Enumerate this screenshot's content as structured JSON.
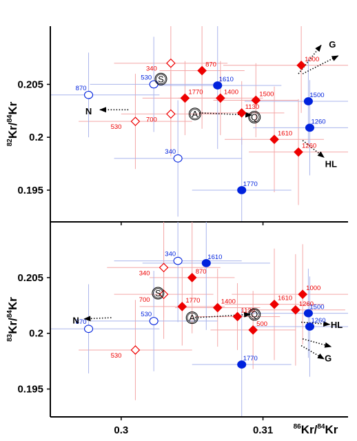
{
  "colors": {
    "red": "#ee0000",
    "blue": "#0022dd",
    "red_bar": "#f4a6a6",
    "blue_bar": "#a9b4ec",
    "axis": "#000000"
  },
  "chart_data": [
    {
      "type": "scatter",
      "panel": "top",
      "ylabel": {
        "sup1": "82",
        "base1": "Kr/",
        "sup2": "84",
        "base2": "Kr"
      },
      "xlim": [
        0.295,
        0.316
      ],
      "ylim": [
        0.192,
        0.2105
      ],
      "yticks": [
        "0.205",
        "0.2",
        "0.195"
      ],
      "ytick_values": [
        0.205,
        0.2,
        0.195
      ],
      "grid": false,
      "series": [
        {
          "marker": "filled-diamond",
          "color": "red",
          "points": [
            {
              "label": "870",
              "x": 0.3057,
              "y": 0.2063,
              "xerr": 0.003,
              "yerr": 0.0055
            },
            {
              "label": "1000",
              "x": 0.3127,
              "y": 0.2068,
              "xerr": 0.0055,
              "yerr": 0.0045
            },
            {
              "label": "1770",
              "x": 0.3045,
              "y": 0.2037,
              "xerr": 0.003,
              "yerr": 0.0035
            },
            {
              "label": "1400",
              "x": 0.307,
              "y": 0.2037,
              "xerr": 0.003,
              "yerr": 0.0035
            },
            {
              "label": "1500",
              "x": 0.3095,
              "y": 0.2035,
              "xerr": 0.003,
              "yerr": 0.0035
            },
            {
              "label": "1130",
              "x": 0.3085,
              "y": 0.2023,
              "xerr": 0.003,
              "yerr": 0.003
            },
            {
              "label": "1610",
              "x": 0.3108,
              "y": 0.1998,
              "xerr": 0.0035,
              "yerr": 0.005
            },
            {
              "label": "1260",
              "x": 0.3125,
              "y": 0.1986,
              "xerr": 0.0035,
              "yerr": 0.005
            }
          ]
        },
        {
          "marker": "open-diamond",
          "color": "red",
          "points": [
            {
              "label": "340",
              "x": 0.3035,
              "y": 0.207,
              "xerr": 0.004,
              "yerr": 0.0045
            },
            {
              "label": "700",
              "x": 0.3035,
              "y": 0.2022,
              "xerr": 0.0035,
              "yerr": 0.004
            },
            {
              "label": "530",
              "x": 0.301,
              "y": 0.2015,
              "xerr": 0.004,
              "yerr": 0.0045
            }
          ]
        },
        {
          "marker": "filled-circle",
          "color": "blue",
          "points": [
            {
              "label": "1610",
              "x": 0.3068,
              "y": 0.2049,
              "xerr": 0.0045,
              "yerr": 0.006
            },
            {
              "label": "1500",
              "x": 0.3132,
              "y": 0.2034,
              "xerr": 0.0045,
              "yerr": 0.004
            },
            {
              "label": "1260",
              "x": 0.3133,
              "y": 0.2009,
              "xerr": 0.004,
              "yerr": 0.0045
            },
            {
              "label": "1770",
              "x": 0.3085,
              "y": 0.195,
              "xerr": 0.0035,
              "yerr": 0.005
            }
          ]
        },
        {
          "marker": "open-circle",
          "color": "blue",
          "points": [
            {
              "label": "870",
              "x": 0.2977,
              "y": 0.204,
              "xerr": 0.005,
              "yerr": 0.004
            },
            {
              "label": "530",
              "x": 0.3023,
              "y": 0.205,
              "xerr": 0.0045,
              "yerr": 0.0045
            },
            {
              "label": "340",
              "x": 0.304,
              "y": 0.198,
              "xerr": 0.0045,
              "yerr": 0.0055
            }
          ]
        }
      ],
      "annotations": [
        {
          "kind": "circle",
          "text": "S",
          "x": 0.3028,
          "y": 0.2055
        },
        {
          "kind": "circle",
          "text": "A",
          "x": 0.3052,
          "y": 0.2022
        },
        {
          "kind": "circle",
          "text": "Q",
          "x": 0.3094,
          "y": 0.2019
        },
        {
          "kind": "text",
          "text": "N",
          "x": 0.2977,
          "y": 0.2025
        },
        {
          "kind": "text",
          "text": "G",
          "x": 0.3149,
          "y": 0.2088
        },
        {
          "kind": "text",
          "text": "HL",
          "x": 0.3148,
          "y": 0.1975
        }
      ],
      "arrows": [
        {
          "from": [
            0.3055,
            0.2023
          ],
          "to": [
            0.3092,
            0.2021
          ]
        },
        {
          "from": [
            0.3005,
            0.2026
          ],
          "to": [
            0.2985,
            0.2026
          ]
        },
        {
          "from": [
            0.3125,
            0.206
          ],
          "to": [
            0.3141,
            0.2087
          ]
        },
        {
          "from": [
            0.3128,
            0.206
          ],
          "to": [
            0.3153,
            0.2077
          ]
        },
        {
          "from": [
            0.3128,
            0.1997
          ],
          "to": [
            0.3143,
            0.1981
          ]
        }
      ]
    },
    {
      "type": "scatter",
      "panel": "bottom",
      "ylabel": {
        "sup1": "83",
        "base1": "Kr/",
        "sup2": "84",
        "base2": "Kr"
      },
      "xlabel": {
        "sup1": "86",
        "base1": "Kr/",
        "sup2": "84",
        "base2": "Kr"
      },
      "xlim": [
        0.295,
        0.316
      ],
      "ylim": [
        0.1925,
        0.21
      ],
      "xticks": [
        "0.3",
        "0.31"
      ],
      "xtick_values": [
        0.3,
        0.31
      ],
      "yticks": [
        "0.205",
        "0.2",
        "0.195"
      ],
      "ytick_values": [
        0.205,
        0.2,
        0.195
      ],
      "grid": false,
      "series": [
        {
          "marker": "filled-diamond",
          "color": "red",
          "points": [
            {
              "label": "870",
              "x": 0.305,
              "y": 0.205,
              "xerr": 0.003,
              "yerr": 0.005
            },
            {
              "label": "1000",
              "x": 0.3128,
              "y": 0.2035,
              "xerr": 0.005,
              "yerr": 0.0045
            },
            {
              "label": "1770",
              "x": 0.3043,
              "y": 0.2024,
              "xerr": 0.003,
              "yerr": 0.0035
            },
            {
              "label": "1400",
              "x": 0.3068,
              "y": 0.2023,
              "xerr": 0.003,
              "yerr": 0.0035
            },
            {
              "label": "1610",
              "x": 0.3108,
              "y": 0.2026,
              "xerr": 0.0035,
              "yerr": 0.005
            },
            {
              "label": "1260",
              "x": 0.3123,
              "y": 0.2021,
              "xerr": 0.0035,
              "yerr": 0.005
            },
            {
              "label": "1130",
              "x": 0.3082,
              "y": 0.2015,
              "xerr": 0.003,
              "yerr": 0.003
            },
            {
              "label": "500",
              "x": 0.3093,
              "y": 0.2003,
              "xerr": 0.003,
              "yerr": 0.0035
            }
          ]
        },
        {
          "marker": "open-diamond",
          "color": "red",
          "points": [
            {
              "label": "340",
              "x": 0.303,
              "y": 0.2059,
              "xerr": 0.004,
              "yerr": 0.0045
            },
            {
              "label": "700",
              "x": 0.303,
              "y": 0.2035,
              "xerr": 0.0035,
              "yerr": 0.004
            },
            {
              "label": "530",
              "x": 0.301,
              "y": 0.1985,
              "xerr": 0.004,
              "yerr": 0.0045
            }
          ]
        },
        {
          "marker": "filled-circle",
          "color": "blue",
          "points": [
            {
              "label": "1610",
              "x": 0.306,
              "y": 0.2063,
              "xerr": 0.0045,
              "yerr": 0.006
            },
            {
              "label": "1500",
              "x": 0.3132,
              "y": 0.2018,
              "xerr": 0.0045,
              "yerr": 0.004
            },
            {
              "label": "1260",
              "x": 0.3133,
              "y": 0.2006,
              "xerr": 0.004,
              "yerr": 0.0045
            },
            {
              "label": "1770",
              "x": 0.3085,
              "y": 0.1972,
              "xerr": 0.0035,
              "yerr": 0.005
            }
          ]
        },
        {
          "marker": "open-circle",
          "color": "blue",
          "points": [
            {
              "label": "340",
              "x": 0.304,
              "y": 0.2065,
              "xerr": 0.0045,
              "yerr": 0.0055
            },
            {
              "label": "530",
              "x": 0.3023,
              "y": 0.2011,
              "xerr": 0.0045,
              "yerr": 0.0045
            },
            {
              "label": "870",
              "x": 0.2977,
              "y": 0.2004,
              "xerr": 0.005,
              "yerr": 0.004
            }
          ]
        }
      ],
      "annotations": [
        {
          "kind": "circle",
          "text": "S",
          "x": 0.3026,
          "y": 0.2036
        },
        {
          "kind": "circle",
          "text": "A",
          "x": 0.305,
          "y": 0.2014
        },
        {
          "kind": "circle",
          "text": "Q",
          "x": 0.3094,
          "y": 0.2017
        },
        {
          "kind": "text",
          "text": "N",
          "x": 0.2968,
          "y": 0.2012
        },
        {
          "kind": "text",
          "text": "HL",
          "x": 0.3152,
          "y": 0.2008
        },
        {
          "kind": "text",
          "text": "G",
          "x": 0.3146,
          "y": 0.1978
        }
      ],
      "arrows": [
        {
          "from": [
            0.3052,
            0.2014
          ],
          "to": [
            0.3091,
            0.2017
          ]
        },
        {
          "from": [
            0.2993,
            0.2014
          ],
          "to": [
            0.2974,
            0.2013
          ]
        },
        {
          "from": [
            0.3127,
            0.201
          ],
          "to": [
            0.3147,
            0.2008
          ]
        },
        {
          "from": [
            0.3128,
            0.1995
          ],
          "to": [
            0.3148,
            0.1988
          ]
        },
        {
          "from": [
            0.3127,
            0.1989
          ],
          "to": [
            0.3143,
            0.1977
          ]
        }
      ]
    }
  ]
}
